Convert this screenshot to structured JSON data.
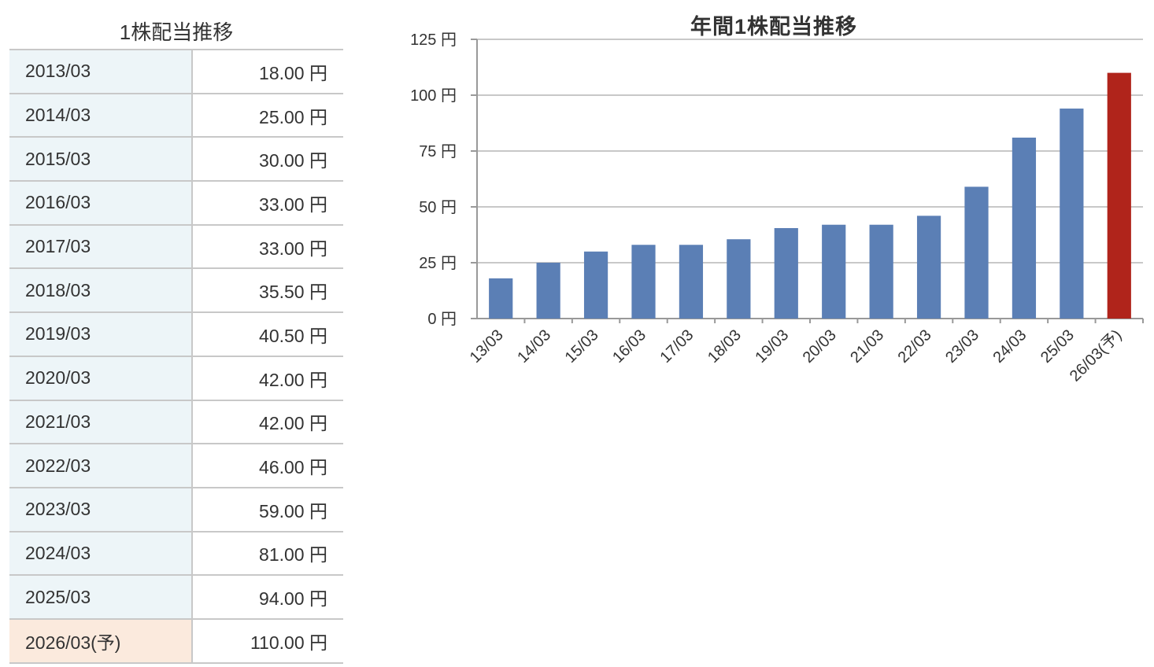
{
  "table": {
    "title": "1株配当推移",
    "unit": "円",
    "rows": [
      {
        "period": "2013/03",
        "amount": "18.00 円",
        "forecast": false
      },
      {
        "period": "2014/03",
        "amount": "25.00 円",
        "forecast": false
      },
      {
        "period": "2015/03",
        "amount": "30.00 円",
        "forecast": false
      },
      {
        "period": "2016/03",
        "amount": "33.00 円",
        "forecast": false
      },
      {
        "period": "2017/03",
        "amount": "33.00 円",
        "forecast": false
      },
      {
        "period": "2018/03",
        "amount": "35.50 円",
        "forecast": false
      },
      {
        "period": "2019/03",
        "amount": "40.50 円",
        "forecast": false
      },
      {
        "period": "2020/03",
        "amount": "42.00 円",
        "forecast": false
      },
      {
        "period": "2021/03",
        "amount": "42.00 円",
        "forecast": false
      },
      {
        "period": "2022/03",
        "amount": "46.00 円",
        "forecast": false
      },
      {
        "period": "2023/03",
        "amount": "59.00 円",
        "forecast": false
      },
      {
        "period": "2024/03",
        "amount": "81.00 円",
        "forecast": false
      },
      {
        "period": "2025/03",
        "amount": "94.00 円",
        "forecast": false
      },
      {
        "period": "2026/03(予)",
        "amount": "110.00 円",
        "forecast": true
      }
    ]
  },
  "chart_data": {
    "type": "bar",
    "title": "年間1株配当推移",
    "xlabel": "",
    "ylabel": "",
    "categories": [
      "13/03",
      "14/03",
      "15/03",
      "16/03",
      "17/03",
      "18/03",
      "19/03",
      "20/03",
      "21/03",
      "22/03",
      "23/03",
      "24/03",
      "25/03",
      "26/03(予)"
    ],
    "values": [
      18.0,
      25.0,
      30.0,
      33.0,
      33.0,
      35.5,
      40.5,
      42.0,
      42.0,
      46.0,
      59.0,
      81.0,
      94.0,
      110.0
    ],
    "forecast": [
      false,
      false,
      false,
      false,
      false,
      false,
      false,
      false,
      false,
      false,
      false,
      false,
      false,
      true
    ],
    "ylim": [
      0,
      125
    ],
    "yticks": [
      0,
      25,
      50,
      75,
      100,
      125
    ],
    "ytick_suffix": " 円",
    "grid": true,
    "colors": {
      "actual": "#5b7fb5",
      "forecast": "#b0241b",
      "grid": "#c8c8c8",
      "axis": "#999999"
    }
  }
}
